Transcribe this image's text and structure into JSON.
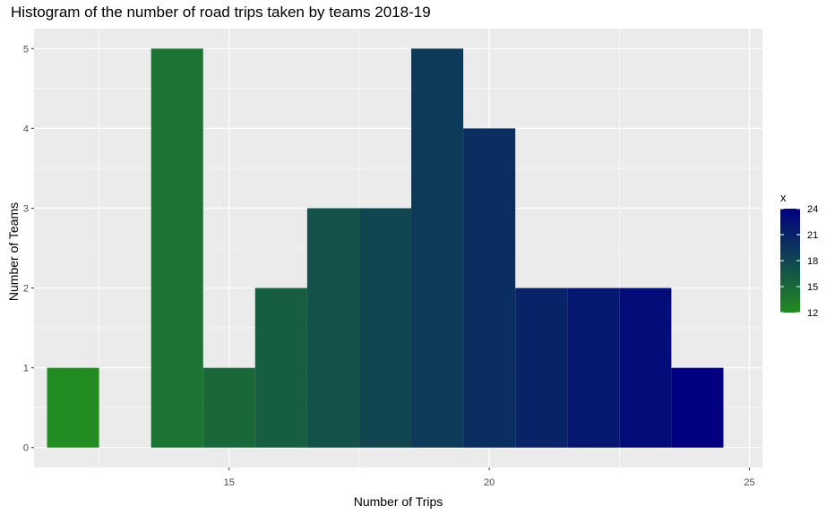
{
  "chart_data": {
    "type": "bar",
    "title": "Histogram of the number of road trips taken by teams 2018-19",
    "xlabel": "Number of Trips",
    "ylabel": "Number of Teams",
    "x": [
      12,
      13,
      14,
      15,
      16,
      17,
      18,
      19,
      20,
      21,
      22,
      23,
      24
    ],
    "values": [
      1,
      0,
      5,
      1,
      2,
      3,
      3,
      5,
      4,
      2,
      2,
      2,
      1
    ],
    "bin_width": 1,
    "xlim": [
      11.25,
      25.25
    ],
    "ylim": [
      -0.25,
      5.25
    ],
    "x_ticks": [
      15,
      20,
      25
    ],
    "y_ticks": [
      0,
      1,
      2,
      3,
      4,
      5
    ],
    "grid": true,
    "fill_scale": {
      "low": "#228B22",
      "high": "#000080",
      "min": 12,
      "max": 24
    },
    "legend": {
      "title": "x",
      "position": "right",
      "breaks": [
        24,
        21,
        18,
        15,
        12
      ]
    }
  }
}
